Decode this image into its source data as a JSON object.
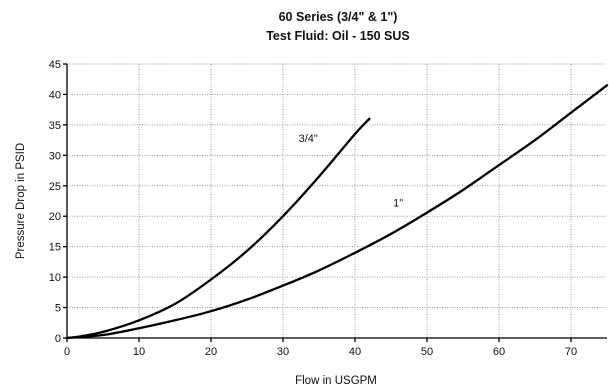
{
  "chart_data": {
    "type": "line",
    "title": "60 Series (3/4\" & 1\")",
    "subtitle": "Test Fluid: Oil - 150 SUS",
    "xlabel": "Flow in USGPM",
    "ylabel": "Pressure Drop in PSID",
    "xlim": [
      0,
      75
    ],
    "ylim": [
      0,
      45
    ],
    "xticks": [
      0,
      10,
      20,
      30,
      40,
      50,
      60,
      70
    ],
    "yticks": [
      0,
      5,
      10,
      15,
      20,
      25,
      30,
      35,
      40,
      45
    ],
    "grid": true,
    "legend": "none",
    "series": [
      {
        "name": "3/4\"",
        "x": [
          0,
          2,
          5,
          10,
          15,
          20,
          25,
          30,
          35,
          40,
          42
        ],
        "y": [
          0,
          0.3,
          1.0,
          2.9,
          5.6,
          9.6,
          14.3,
          20.0,
          26.5,
          33.5,
          36.0
        ]
      },
      {
        "name": "1\"",
        "x": [
          0,
          5,
          10,
          15,
          20,
          25,
          30,
          35,
          40,
          45,
          50,
          55,
          60,
          65,
          70,
          75
        ],
        "y": [
          0,
          0.5,
          1.6,
          2.9,
          4.4,
          6.3,
          8.6,
          11.1,
          14.0,
          17.1,
          20.6,
          24.3,
          28.4,
          32.5,
          37.0,
          41.5
        ]
      }
    ]
  }
}
